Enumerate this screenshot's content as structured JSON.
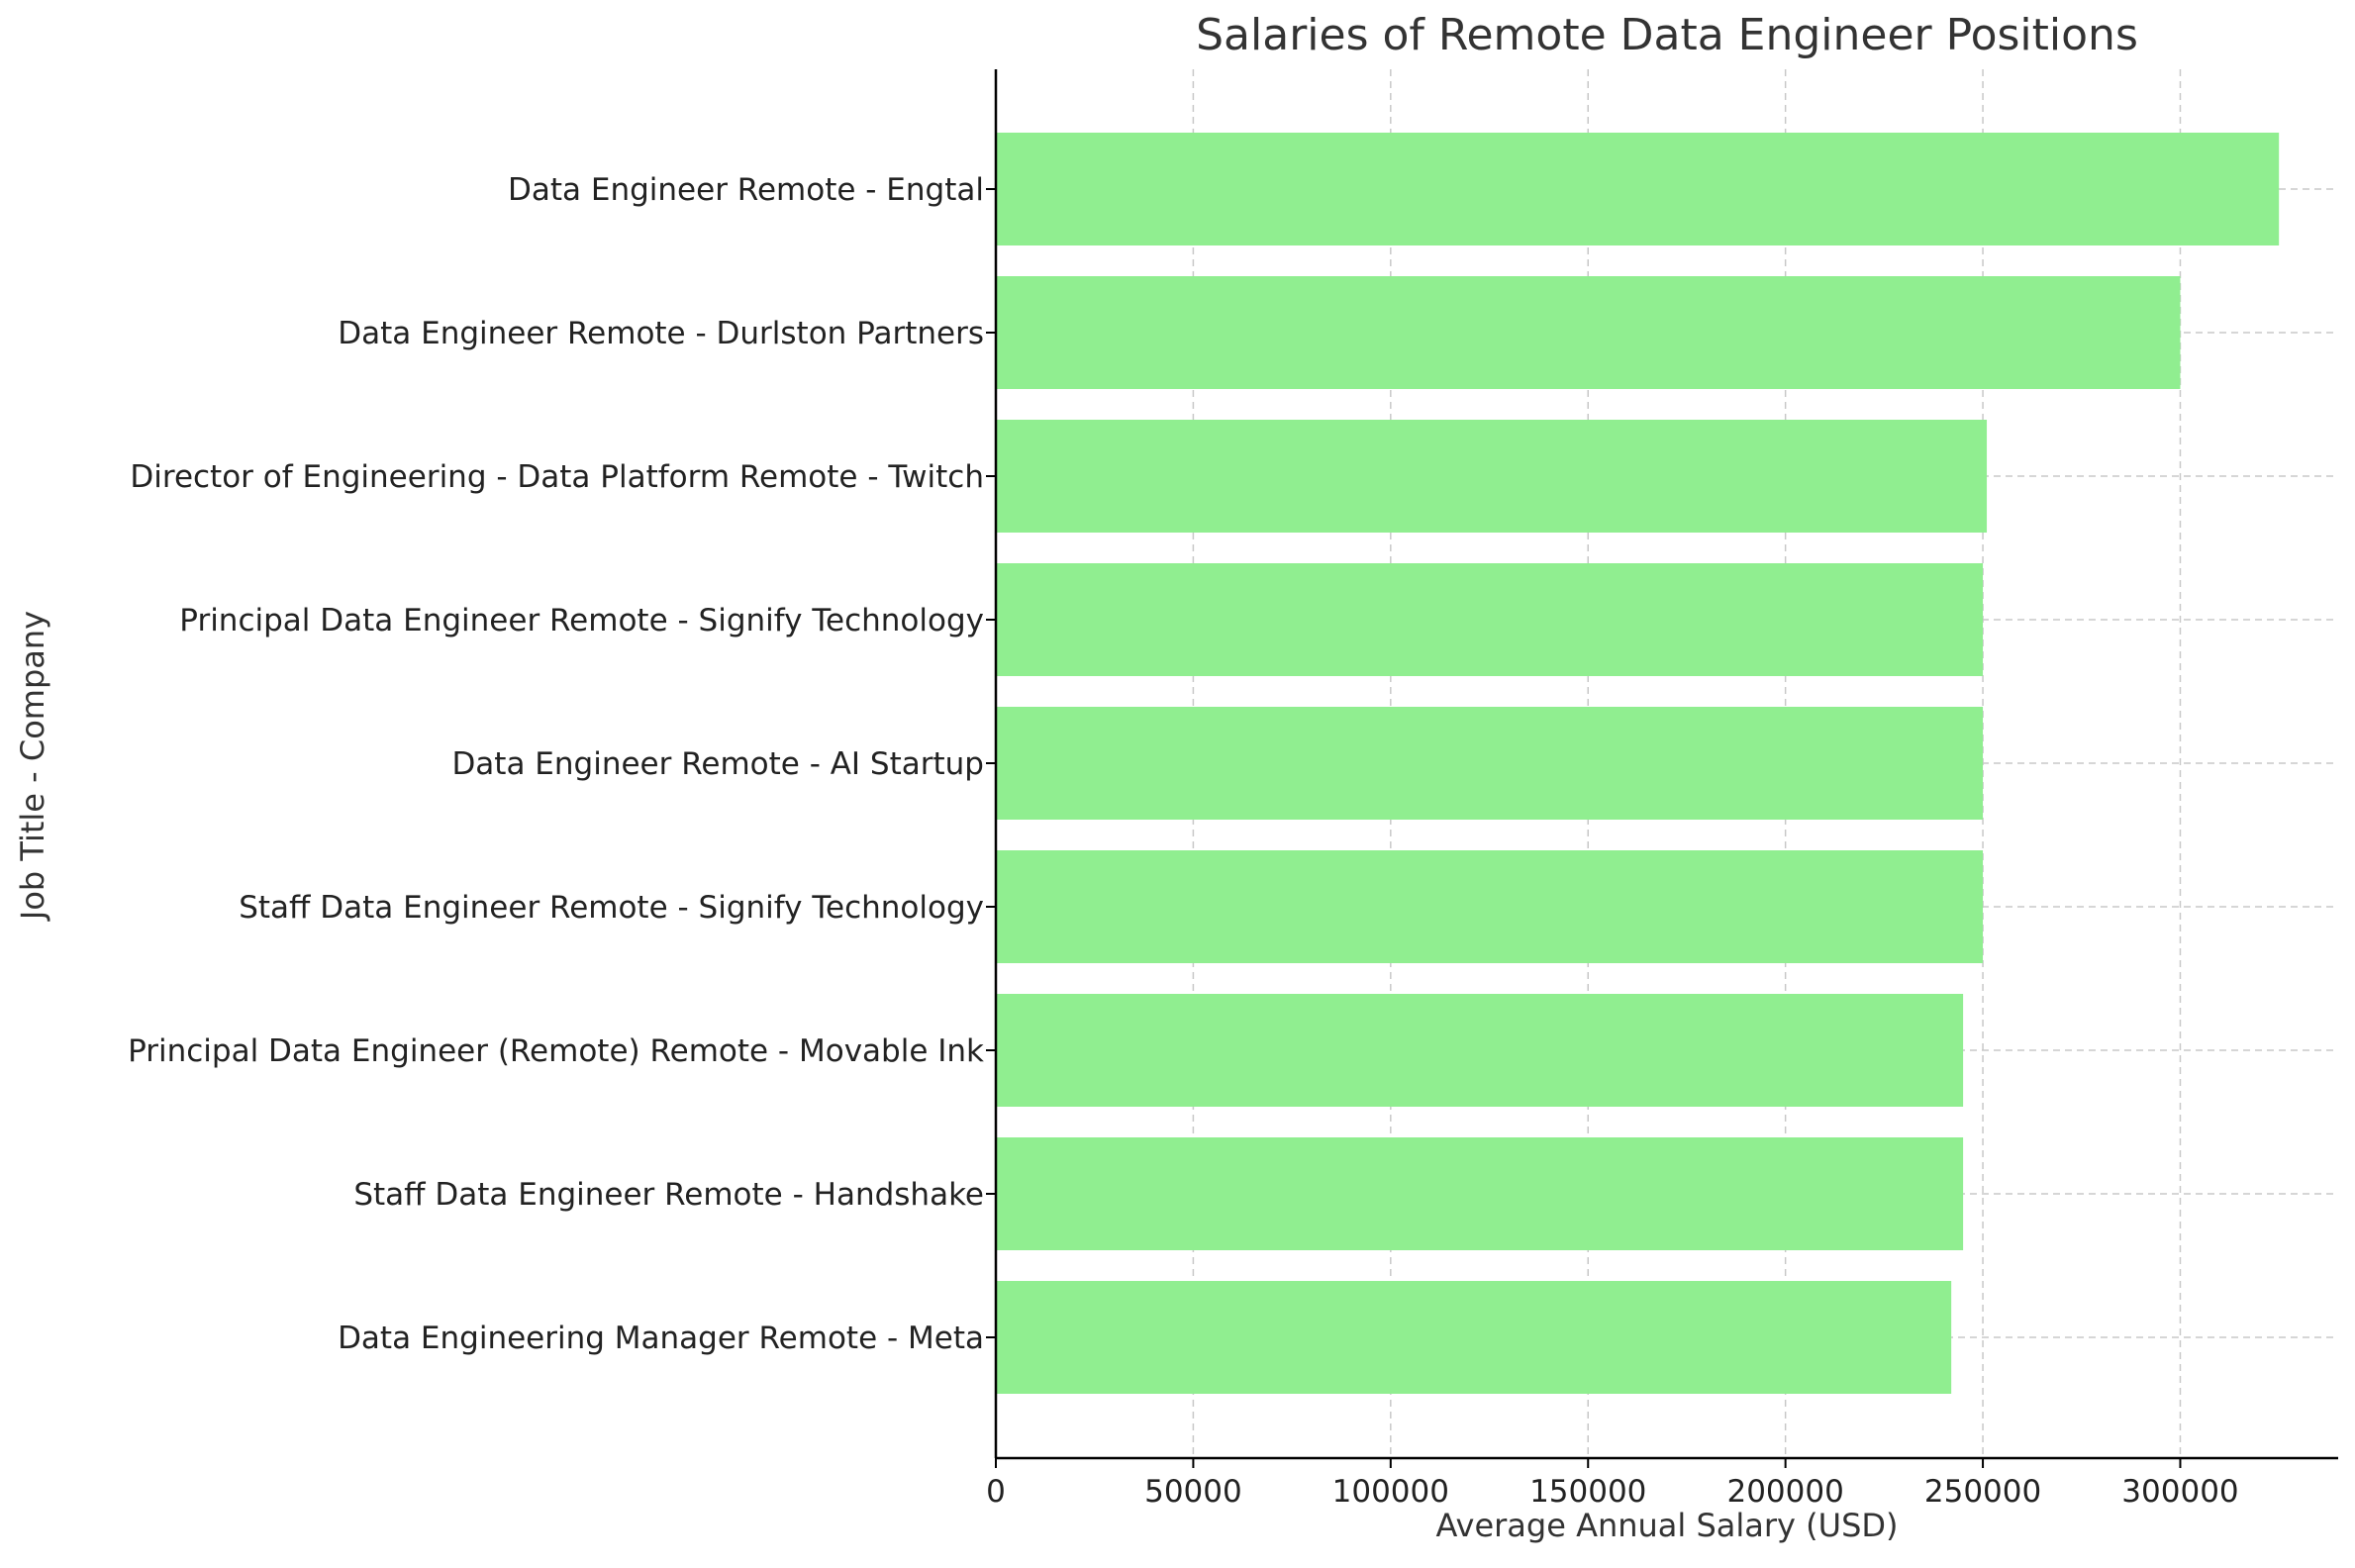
{
  "chart_data": {
    "type": "bar",
    "orientation": "horizontal",
    "title": "Salaries of Remote Data Engineer Positions",
    "xlabel": "Average Annual Salary (USD)",
    "ylabel": "Job Title - Company",
    "xlim": [
      0,
      340000
    ],
    "xticks": [
      0,
      50000,
      100000,
      150000,
      200000,
      250000,
      300000
    ],
    "grid": true,
    "grid_style": "dashed",
    "bar_color": "#90ee90",
    "categories": [
      "Data Engineer Remote - Engtal",
      "Data Engineer Remote - Durlston Partners",
      "Director of Engineering - Data Platform Remote - Twitch",
      "Principal Data Engineer Remote - Signify Technology",
      "Data Engineer Remote - AI Startup",
      "Staff Data Engineer Remote - Signify Technology",
      "Principal Data Engineer (Remote) Remote - Movable Ink",
      "Staff Data Engineer Remote - Handshake",
      "Data Engineering Manager Remote - Meta"
    ],
    "values": [
      325000,
      300000,
      251000,
      250000,
      250000,
      250000,
      245000,
      245000,
      242000
    ]
  }
}
